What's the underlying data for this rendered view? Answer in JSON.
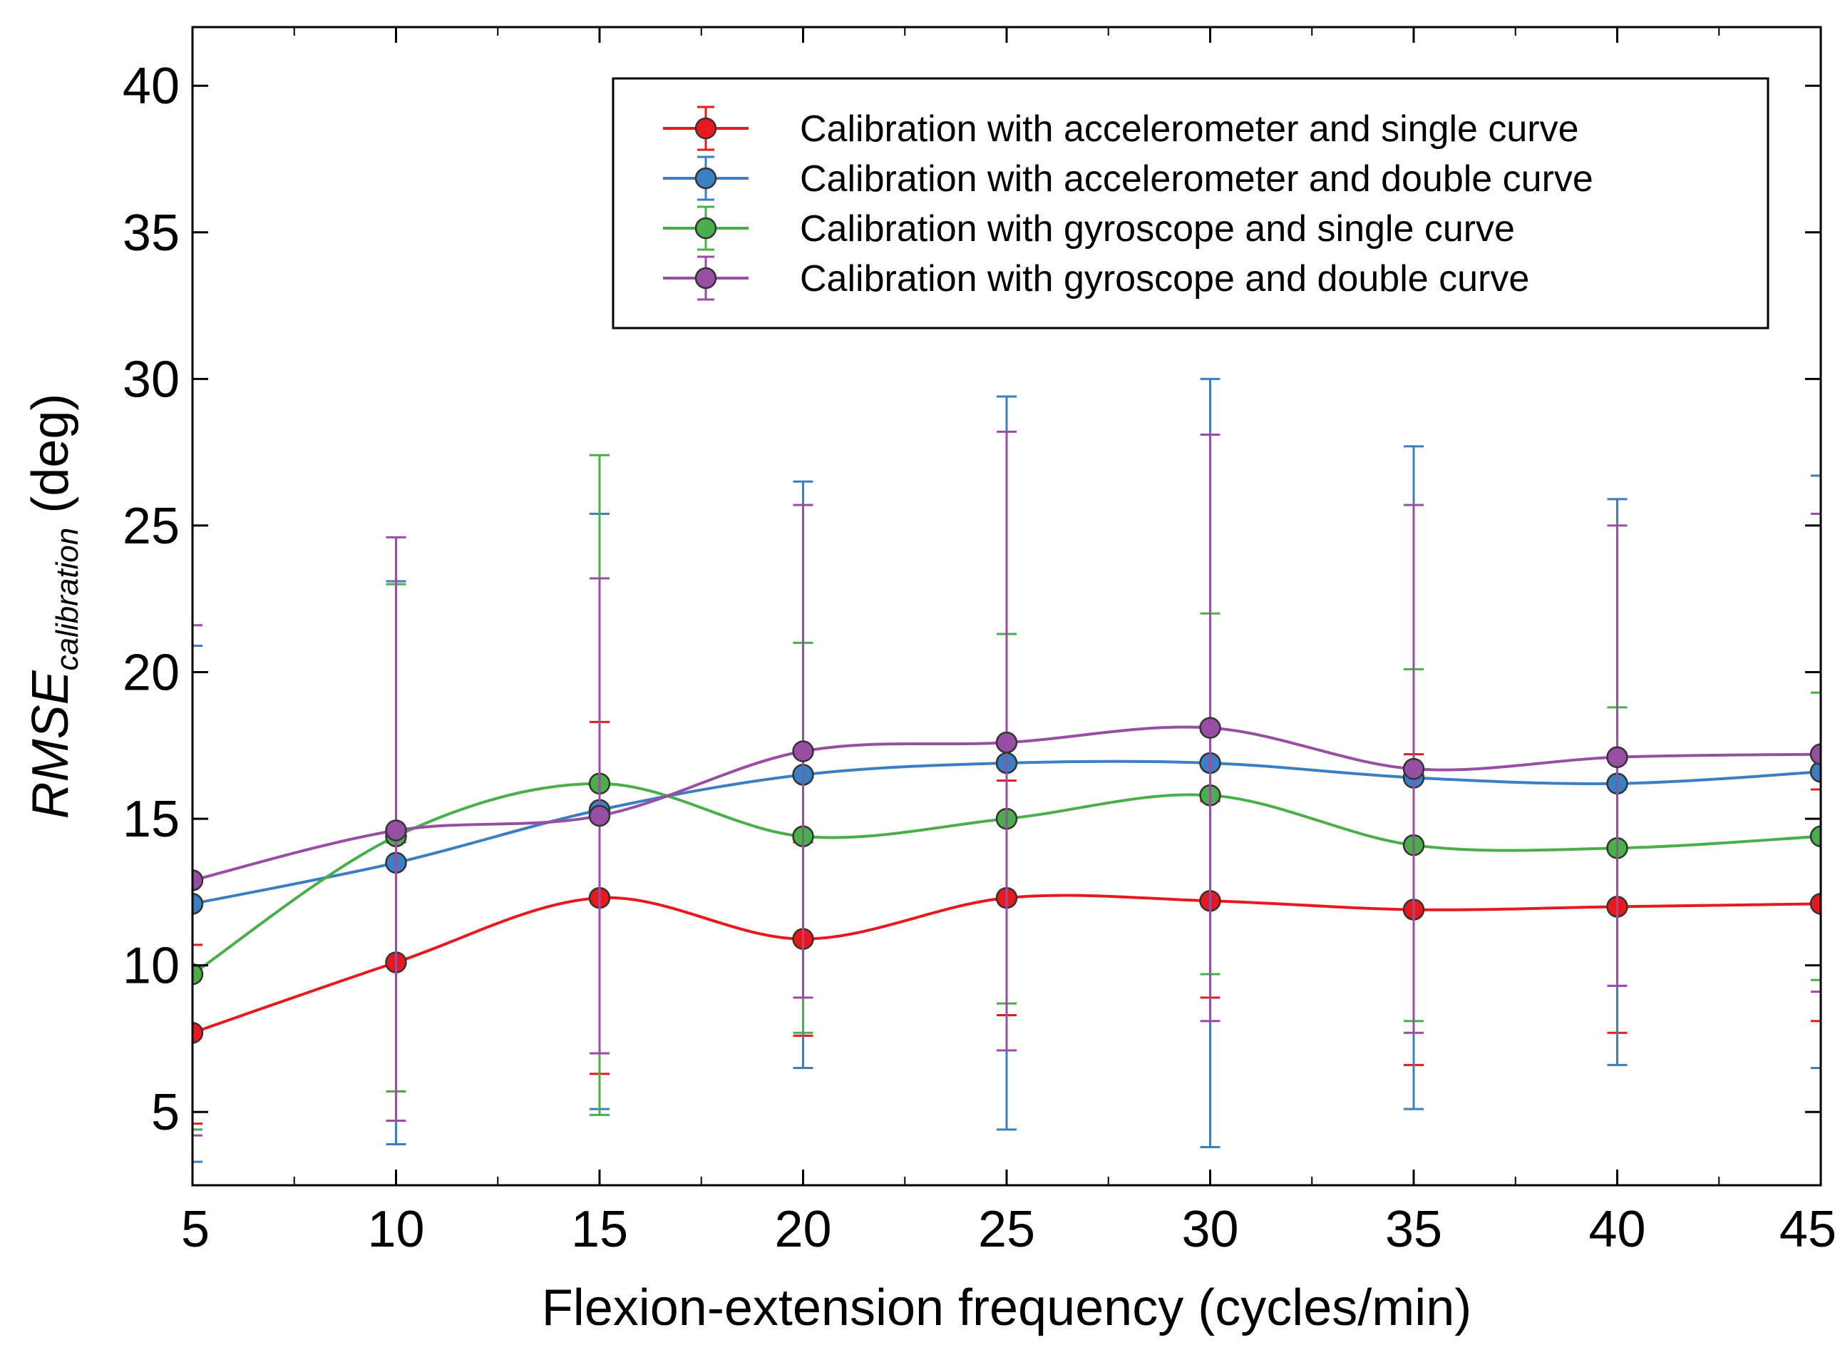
{
  "chart_data": {
    "type": "line",
    "title": "",
    "xlabel": "Flexion-extension frequency (cycles/min)",
    "ylabel": {
      "main": "RMSE",
      "subscript": "calibration",
      "suffix": " (deg)"
    },
    "xlim": [
      5,
      45
    ],
    "ylim": [
      2.5,
      42
    ],
    "xticks": [
      5,
      10,
      15,
      20,
      25,
      30,
      35,
      40,
      45
    ],
    "yticks": [
      5,
      10,
      15,
      20,
      25,
      30,
      35,
      40
    ],
    "x": [
      5,
      10,
      15,
      20,
      25,
      30,
      35,
      40,
      45
    ],
    "grid": false,
    "legend_position": "top-right",
    "error_bars": true,
    "series": [
      {
        "name": "Calibration with accelerometer and single curve",
        "color": "#e8191c",
        "values": [
          7.7,
          10.1,
          12.3,
          10.9,
          12.3,
          12.2,
          11.9,
          12.0,
          12.1
        ],
        "err_low": [
          4.6,
          5.7,
          6.3,
          7.6,
          8.3,
          8.9,
          6.6,
          7.7,
          8.1
        ],
        "err_high": [
          10.7,
          14.2,
          18.3,
          14.2,
          16.3,
          15.6,
          17.2,
          16.3,
          16.0
        ]
      },
      {
        "name": "Calibration with accelerometer and double curve",
        "color": "#3a7fc2",
        "values": [
          12.1,
          13.5,
          15.3,
          16.5,
          16.9,
          16.9,
          16.4,
          16.2,
          16.6
        ],
        "err_low": [
          3.3,
          3.9,
          5.1,
          6.5,
          4.4,
          3.8,
          5.1,
          6.6,
          6.5
        ],
        "err_high": [
          20.9,
          23.1,
          25.4,
          26.5,
          29.4,
          30.0,
          27.7,
          25.9,
          26.7
        ]
      },
      {
        "name": "Calibration with gyroscope and single curve",
        "color": "#4aae4a",
        "values": [
          9.7,
          14.4,
          16.2,
          14.4,
          15.0,
          15.8,
          14.1,
          14.0,
          14.4
        ],
        "err_low": [
          4.4,
          5.7,
          4.9,
          7.7,
          8.7,
          9.7,
          8.1,
          9.3,
          9.5
        ],
        "err_high": [
          15.0,
          23.0,
          27.4,
          21.0,
          21.3,
          22.0,
          20.1,
          18.8,
          19.3
        ]
      },
      {
        "name": "Calibration with gyroscope and double curve",
        "color": "#984ea3",
        "values": [
          12.9,
          14.6,
          15.1,
          17.3,
          17.6,
          18.1,
          16.7,
          17.1,
          17.2
        ],
        "err_low": [
          4.2,
          4.7,
          7.0,
          8.9,
          7.1,
          8.1,
          7.7,
          9.3,
          9.1
        ],
        "err_high": [
          21.6,
          24.6,
          23.2,
          25.7,
          28.2,
          28.1,
          25.7,
          25.0,
          25.4
        ]
      }
    ]
  }
}
